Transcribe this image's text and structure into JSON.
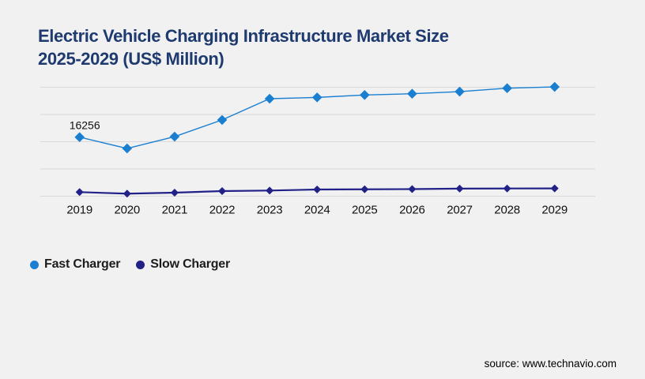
{
  "page": {
    "background": "#f1f1f2",
    "source_text": "source: www.technavio.com"
  },
  "header": {
    "title_line1": "Electric Vehicle Charging Infrastructure Market Size",
    "title_line2": "2025-2029 (US$ Million)",
    "title_color": "#1e3a6e"
  },
  "legend": {
    "items": [
      {
        "label": "Fast Charger",
        "color": "#1a7fd0"
      },
      {
        "label": "Slow Charger",
        "color": "#212188"
      }
    ]
  },
  "chart_data": {
    "type": "line",
    "title": "Electric Vehicle Charging Infrastructure Market Size 2025-2029 (US$ Million)",
    "categories": [
      "2019",
      "2020",
      "2021",
      "2022",
      "2023",
      "2024",
      "2025",
      "2026",
      "2027",
      "2028",
      "2029"
    ],
    "series": [
      {
        "name": "Fast Charger",
        "color": "#1a7fd0",
        "marker": "diamond",
        "values": [
          16256,
          13150,
          16400,
          21000,
          26850,
          27200,
          27870,
          28220,
          28800,
          29740,
          30100
        ]
      },
      {
        "name": "Slow Charger",
        "color": "#212188",
        "marker": "diamond",
        "values": [
          1130,
          700,
          980,
          1410,
          1560,
          1850,
          1900,
          1950,
          2100,
          2130,
          2150
        ]
      }
    ],
    "data_labels": [
      {
        "series": "Fast Charger",
        "category": "2019",
        "value": "16256"
      }
    ],
    "xlabel": "",
    "ylabel": "",
    "ylim": [
      0,
      30000
    ],
    "gridline_step": 7500,
    "gridline_color": "#d8d8da",
    "grid": true,
    "y_axis_labels_shown": false,
    "legend_position": "bottom-left"
  }
}
